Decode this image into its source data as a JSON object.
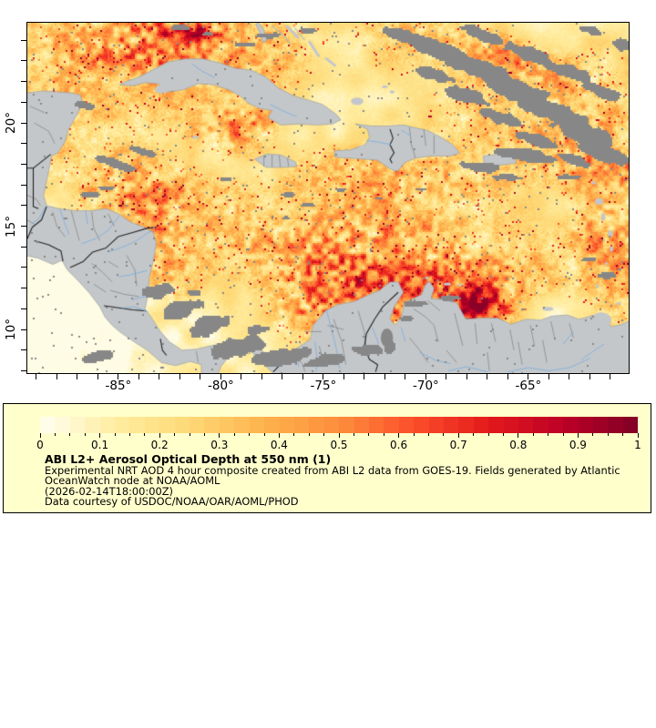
{
  "figure": {
    "map": {
      "x_axis": {
        "range_lon": [
          -89.44,
          -60.11
        ],
        "major_ticks": [
          {
            "value": -85,
            "label": "-85°"
          },
          {
            "value": -80,
            "label": "-80°"
          },
          {
            "value": -75,
            "label": "-75°"
          },
          {
            "value": -70,
            "label": "-70°"
          },
          {
            "value": -65,
            "label": "-65°"
          }
        ],
        "minor_tick_step_deg": 1
      },
      "y_axis": {
        "range_lat": [
          7.89,
          24.85
        ],
        "major_ticks": [
          {
            "value": 20,
            "label": "20°"
          },
          {
            "value": 15,
            "label": "15°"
          },
          {
            "value": 10,
            "label": "10°"
          }
        ],
        "minor_tick_step_deg": 1
      },
      "colors": {
        "land": "#c4c7ca",
        "cloud_nodata": "#878787",
        "admin_border": "#8d8d8d",
        "country_border": "#222222",
        "river": "#7fb0dd",
        "frame": "#000000"
      }
    },
    "legend": {
      "background": "#ffffcc",
      "colorbar": {
        "range": [
          0,
          1
        ],
        "blocks": 40,
        "tick_labels": [
          "0",
          "0.1",
          "0.2",
          "0.3",
          "0.4",
          "0.5",
          "0.6",
          "0.7",
          "0.8",
          "0.9",
          "1"
        ],
        "minor_tick_step": 0.025,
        "colormap_stops": [
          "#fffff2",
          "#ffeda0",
          "#fed976",
          "#feb24c",
          "#fd8d3c",
          "#fc4e2a",
          "#e31a1c",
          "#bd0026",
          "#800026"
        ]
      },
      "title": "ABI L2+ Aerosol Optical Depth at 550 nm (1)",
      "lines": [
        "Experimental NRT AOD 4 hour composite created from ABI L2 data from GOES-19. Fields generated by Atlantic",
        "OceanWatch node at NOAA/AOML",
        "(2026-02-14T18:00:00Z)",
        "Data courtesy of USDOC/NOAA/OAR/AOML/PHOD"
      ]
    }
  }
}
